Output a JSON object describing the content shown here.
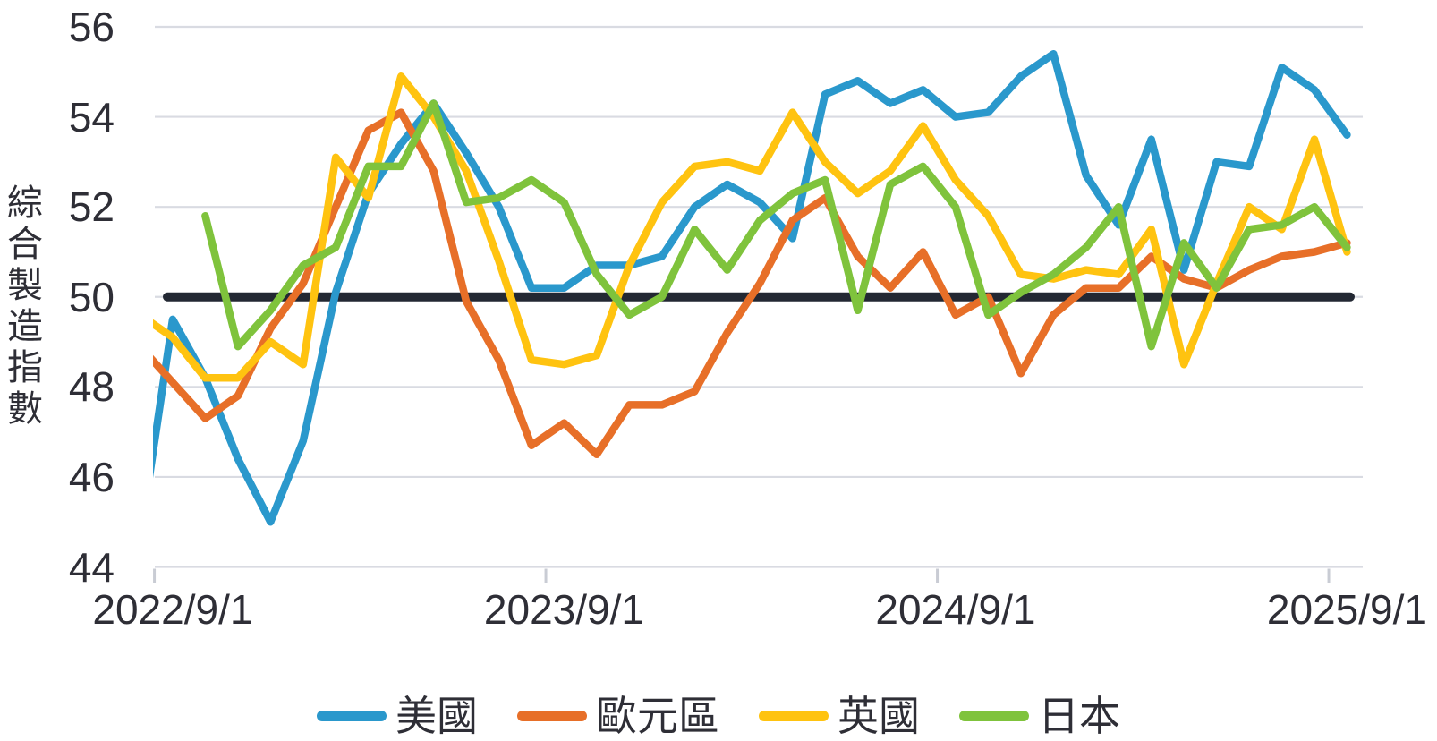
{
  "chart_data": {
    "type": "line",
    "title": "",
    "ylabel": "綜合製造指數",
    "ylim": [
      44,
      56
    ],
    "y_ticks": [
      44,
      46,
      48,
      50,
      52,
      54,
      56
    ],
    "baseline": 50,
    "grid": true,
    "legend_position": "bottom",
    "x": [
      "2022/8",
      "2022/9",
      "2022/10",
      "2022/11",
      "2022/12",
      "2023/1",
      "2023/2",
      "2023/3",
      "2023/4",
      "2023/5",
      "2023/6",
      "2023/7",
      "2023/8",
      "2023/9",
      "2023/10",
      "2023/11",
      "2023/12",
      "2024/1",
      "2024/2",
      "2024/3",
      "2024/4",
      "2024/5",
      "2024/6",
      "2024/7",
      "2024/8",
      "2024/9",
      "2024/10",
      "2024/11",
      "2024/12",
      "2025/1",
      "2025/2",
      "2025/3",
      "2025/4",
      "2025/5",
      "2025/6",
      "2025/7",
      "2025/8",
      "2025/9"
    ],
    "x_tick_labels": [
      "2022/9/1",
      "2023/9/1",
      "2024/9/1",
      "2025/9/1"
    ],
    "x_tick_indices": [
      1,
      13,
      25,
      37
    ],
    "series": [
      {
        "name": "美國",
        "color": "#2A98CC",
        "values": [
          44.6,
          49.5,
          48.2,
          46.4,
          45.0,
          46.8,
          50.1,
          52.3,
          53.4,
          54.3,
          53.2,
          52.0,
          50.2,
          50.2,
          50.7,
          50.7,
          50.9,
          52.0,
          52.5,
          52.1,
          51.3,
          54.5,
          54.8,
          54.3,
          54.6,
          54.0,
          54.1,
          54.9,
          55.4,
          52.7,
          51.6,
          53.5,
          50.6,
          53.0,
          52.9,
          55.1,
          54.6,
          53.6
        ]
      },
      {
        "name": "歐元區",
        "color": "#E76F28",
        "values": [
          48.9,
          48.1,
          47.3,
          47.8,
          49.3,
          50.3,
          52.0,
          53.7,
          54.1,
          52.8,
          49.9,
          48.6,
          46.7,
          47.2,
          46.5,
          47.6,
          47.6,
          47.9,
          49.2,
          50.3,
          51.7,
          52.2,
          50.9,
          50.2,
          51.0,
          49.6,
          50.0,
          48.3,
          49.6,
          50.2,
          50.2,
          50.9,
          50.4,
          50.2,
          50.6,
          50.9,
          51.0,
          51.2
        ]
      },
      {
        "name": "英國",
        "color": "#FFC310",
        "values": [
          49.6,
          49.1,
          48.2,
          48.2,
          49.0,
          48.5,
          53.1,
          52.2,
          54.9,
          54.0,
          52.8,
          50.8,
          48.6,
          48.5,
          48.7,
          50.7,
          52.1,
          52.9,
          53.0,
          52.8,
          54.1,
          53.0,
          52.3,
          52.8,
          53.8,
          52.6,
          51.8,
          50.5,
          50.4,
          50.6,
          50.5,
          51.5,
          48.5,
          50.3,
          52.0,
          51.5,
          53.5,
          51.0
        ]
      },
      {
        "name": "日本",
        "color": "#7FC33C",
        "values": [
          null,
          null,
          51.8,
          48.9,
          49.7,
          50.7,
          51.1,
          52.9,
          52.9,
          54.3,
          52.1,
          52.2,
          52.6,
          52.1,
          50.5,
          49.6,
          50.0,
          51.5,
          50.6,
          51.7,
          52.3,
          52.6,
          49.7,
          52.5,
          52.9,
          52.0,
          49.6,
          50.1,
          50.5,
          51.1,
          52.0,
          48.9,
          51.2,
          50.2,
          51.5,
          51.6,
          52.0,
          51.1
        ]
      }
    ],
    "grid_color": "#D9DBE2",
    "baseline_color": "#232833",
    "tick_color": "#C9CCD4"
  }
}
